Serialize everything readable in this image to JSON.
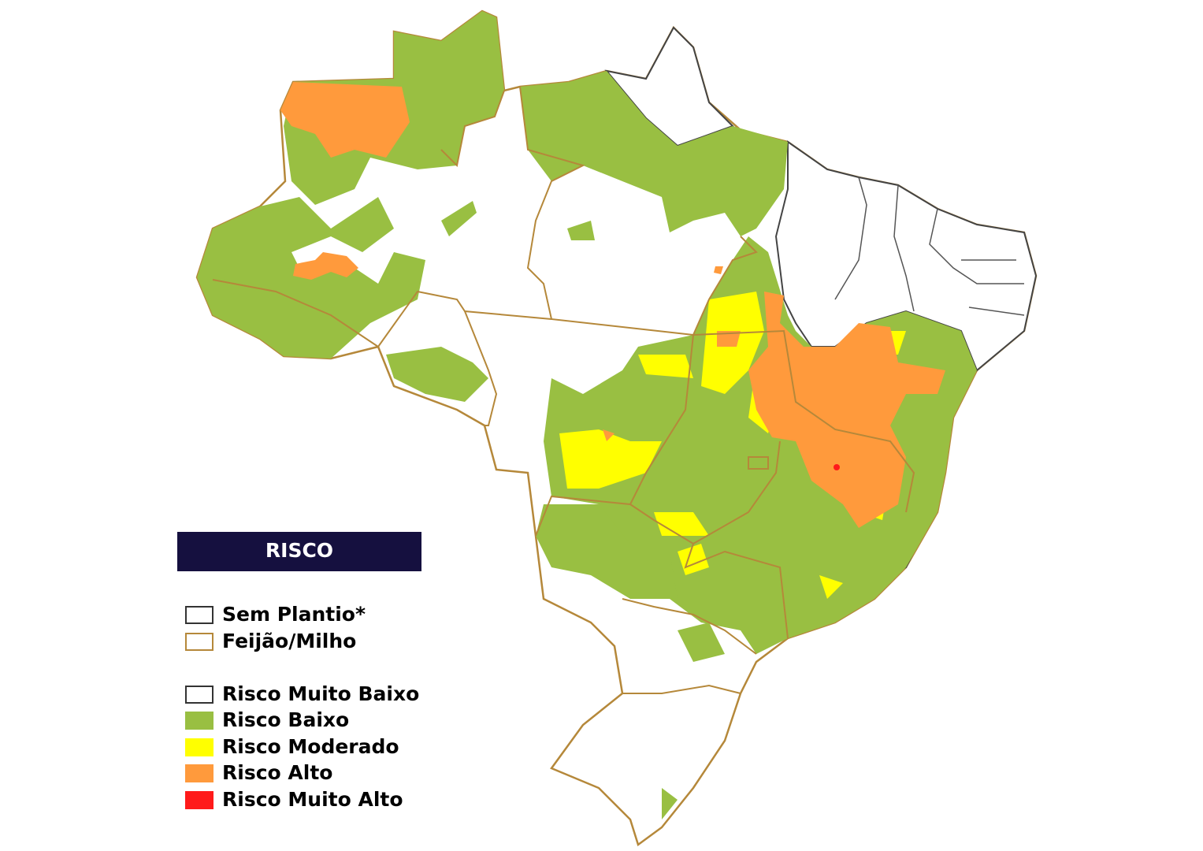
{
  "legend": {
    "title": "RISCO",
    "items": [
      {
        "label": "Sem Plantio*",
        "fill": "#ffffff",
        "stroke": "#333333"
      },
      {
        "label": "Feijão/Milho",
        "fill": "#ffffff",
        "stroke": "#b5883a"
      },
      {
        "label": "Risco Muito Baixo",
        "fill": "#ffffff",
        "stroke": "#333333"
      },
      {
        "label": "Risco Baixo",
        "fill": "#99bf42",
        "stroke": "#99bf42"
      },
      {
        "label": "Risco Moderado",
        "fill": "#ffff00",
        "stroke": "#ffff00"
      },
      {
        "label": "Risco Alto",
        "fill": "#ff9a3c",
        "stroke": "#ff9a3c"
      },
      {
        "label": "Risco Muito Alto",
        "fill": "#ff1a1a",
        "stroke": "#ff1a1a"
      }
    ]
  }
}
